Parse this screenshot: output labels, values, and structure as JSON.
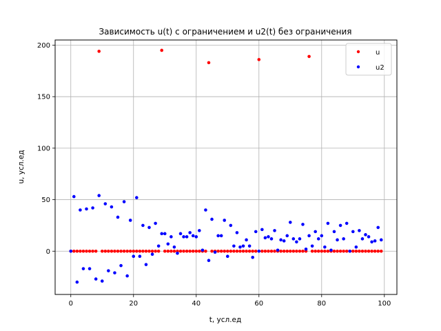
{
  "chart_data": {
    "type": "scatter",
    "title": "Зависимость u(t) с ограничением и u2(t) без ограничения",
    "xlabel": "t, усл.ед",
    "ylabel": "u, усл.ед",
    "xlim": [
      -5,
      104
    ],
    "ylim": [
      -42,
      205
    ],
    "xticks": [
      0,
      20,
      40,
      60,
      80,
      100
    ],
    "yticks": [
      0,
      50,
      100,
      150,
      200
    ],
    "grid": true,
    "legend_position": "top-right",
    "series": [
      {
        "name": "u",
        "color": "#ff0000",
        "x": [
          0,
          1,
          2,
          3,
          4,
          5,
          6,
          7,
          8,
          9,
          10,
          11,
          12,
          13,
          14,
          15,
          16,
          17,
          18,
          19,
          20,
          21,
          22,
          23,
          24,
          25,
          26,
          27,
          28,
          29,
          30,
          31,
          32,
          33,
          34,
          35,
          36,
          37,
          38,
          39,
          40,
          41,
          42,
          43,
          44,
          45,
          46,
          47,
          48,
          49,
          50,
          51,
          52,
          53,
          54,
          55,
          56,
          57,
          58,
          59,
          60,
          61,
          62,
          63,
          64,
          65,
          66,
          67,
          68,
          69,
          70,
          71,
          72,
          73,
          74,
          75,
          76,
          77,
          78,
          79,
          80,
          81,
          82,
          83,
          84,
          85,
          86,
          87,
          88,
          89,
          90,
          91,
          92,
          93,
          94,
          95,
          96,
          97,
          98,
          99
        ],
        "y": [
          0,
          0,
          0,
          0,
          0,
          0,
          0,
          0,
          0,
          194,
          0,
          0,
          0,
          0,
          0,
          0,
          0,
          0,
          0,
          0,
          0,
          0,
          0,
          0,
          0,
          0,
          0,
          0,
          0,
          195,
          0,
          0,
          0,
          0,
          0,
          0,
          0,
          0,
          0,
          0,
          0,
          0,
          0,
          0,
          183,
          0,
          0,
          0,
          0,
          0,
          0,
          0,
          0,
          0,
          0,
          0,
          0,
          0,
          0,
          0,
          186,
          0,
          0,
          0,
          0,
          0,
          0,
          0,
          0,
          0,
          0,
          0,
          0,
          0,
          0,
          0,
          189,
          0,
          0,
          0,
          0,
          0,
          0,
          0,
          0,
          0,
          0,
          0,
          0,
          0,
          0,
          0,
          0,
          0,
          0,
          0,
          0,
          0,
          0,
          0
        ]
      },
      {
        "name": "u2",
        "color": "#0000ff",
        "x": [
          0,
          1,
          2,
          3,
          4,
          5,
          6,
          7,
          8,
          9,
          10,
          11,
          12,
          13,
          14,
          15,
          16,
          17,
          18,
          19,
          20,
          21,
          22,
          23,
          24,
          25,
          26,
          27,
          28,
          29,
          30,
          31,
          32,
          33,
          34,
          35,
          36,
          37,
          38,
          39,
          40,
          41,
          42,
          43,
          44,
          45,
          46,
          47,
          48,
          49,
          50,
          51,
          52,
          53,
          54,
          55,
          56,
          57,
          58,
          59,
          60,
          61,
          62,
          63,
          64,
          65,
          66,
          67,
          68,
          69,
          70,
          71,
          72,
          73,
          74,
          75,
          76,
          77,
          78,
          79,
          80,
          81,
          82,
          83,
          84,
          85,
          86,
          87,
          88,
          89,
          90,
          91,
          92,
          93,
          94,
          95,
          96,
          97,
          98,
          99
        ],
        "y": [
          0,
          53,
          -30,
          40,
          -17,
          41,
          -17,
          42,
          -27,
          54,
          -29,
          46,
          -19,
          43,
          -21,
          33,
          -14,
          48,
          -24,
          30,
          -5,
          52,
          -5,
          25,
          -13,
          23,
          -3,
          27,
          5,
          17,
          17,
          7,
          14,
          4,
          -2,
          17,
          14,
          14,
          18,
          15,
          14,
          20,
          1,
          40,
          -9,
          31,
          -1,
          15,
          15,
          30,
          -5,
          25,
          5,
          18,
          4,
          5,
          11,
          5,
          -6,
          19,
          0,
          21,
          13,
          14,
          12,
          20,
          1,
          11,
          10,
          15,
          28,
          12,
          9,
          12,
          26,
          2,
          15,
          5,
          19,
          12,
          15,
          4,
          27,
          1,
          19,
          11,
          25,
          12,
          27,
          0,
          19,
          4,
          20,
          12,
          16,
          14,
          9,
          10,
          23,
          11
        ]
      }
    ]
  }
}
